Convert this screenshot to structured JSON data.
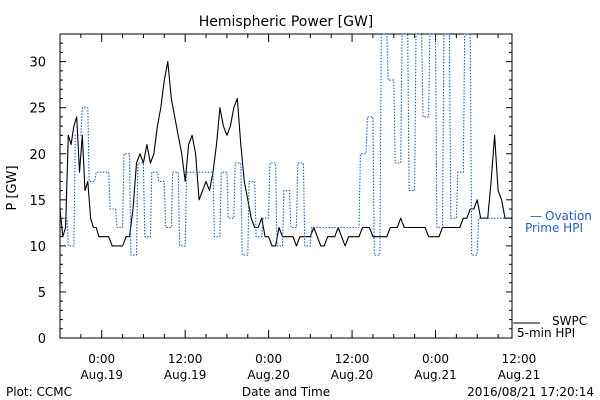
{
  "chart_data": {
    "type": "line",
    "title": "Hemispheric Power [GW]",
    "ylabel": "P [GW]",
    "xlabel": "Date and Time",
    "ylim": [
      0,
      33
    ],
    "xlim_hours": [
      -6,
      59
    ],
    "y_ticks": [
      0,
      5,
      10,
      15,
      20,
      25,
      30
    ],
    "x_ticks": [
      {
        "hour": 0,
        "time": "0:00",
        "date": "Aug.19"
      },
      {
        "hour": 12,
        "time": "12:00",
        "date": "Aug.19"
      },
      {
        "hour": 24,
        "time": "0:00",
        "date": "Aug.20"
      },
      {
        "hour": 36,
        "time": "12:00",
        "date": "Aug.20"
      },
      {
        "hour": 48,
        "time": "0:00",
        "date": "Aug.21"
      },
      {
        "hour": 60,
        "time": "12:00",
        "date": "Aug.21"
      }
    ],
    "series": [
      {
        "name": "SWPC 5-min HPI",
        "color": "#000000",
        "style": "solid",
        "x": [
          -6,
          -5.6,
          -5.2,
          -4.8,
          -4.4,
          -4,
          -3.6,
          -3.2,
          -2.8,
          -2.4,
          -2,
          -1.6,
          -1.2,
          -0.8,
          -0.4,
          0,
          0.5,
          1,
          1.5,
          2,
          2.5,
          3,
          3.5,
          4,
          4.5,
          5,
          5.5,
          6,
          6.5,
          7,
          7.5,
          8,
          8.5,
          9,
          9.5,
          10,
          10.5,
          11,
          11.5,
          12,
          12.5,
          13,
          13.5,
          14,
          14.5,
          15,
          15.5,
          16,
          16.5,
          17,
          17.5,
          18,
          18.5,
          19,
          19.5,
          20,
          20.5,
          21,
          21.5,
          22,
          22.5,
          23,
          23.5,
          24,
          24.5,
          25,
          25.5,
          26,
          26.5,
          27,
          27.5,
          28,
          28.5,
          29,
          29.5,
          30,
          30.5,
          31,
          31.5,
          32,
          32.5,
          33,
          33.5,
          34,
          34.5,
          35,
          35.5,
          36,
          36.5,
          37,
          37.5,
          38,
          38.5,
          39,
          39.5,
          40,
          40.5,
          41,
          41.5,
          42,
          42.5,
          43,
          43.5,
          44,
          44.5,
          45,
          45.5,
          46,
          46.5,
          47,
          47.5,
          48,
          48.5,
          49,
          49.5,
          50,
          50.5,
          51,
          51.5,
          52,
          52.5,
          53,
          53.5,
          54,
          54.5,
          55,
          55.5,
          56,
          56.5,
          57,
          57.5,
          58,
          58.5,
          59
        ],
        "values": [
          14,
          11,
          12,
          22,
          21,
          23,
          24,
          18,
          22,
          16,
          17,
          13,
          12,
          12,
          11,
          11,
          11,
          11,
          10,
          10,
          10,
          10,
          11,
          11,
          14,
          19,
          20,
          19,
          21,
          19,
          20,
          23,
          25,
          28,
          30,
          26,
          24,
          22,
          20,
          17,
          21,
          22,
          20,
          15,
          16,
          17,
          16,
          18,
          21,
          25,
          23,
          22,
          23,
          25,
          26,
          21,
          17,
          15,
          13,
          12,
          12,
          13,
          11,
          11,
          10,
          10,
          12,
          11,
          11,
          11,
          11,
          10,
          11,
          11,
          11,
          11,
          12,
          11,
          10,
          10,
          11,
          11,
          11,
          12,
          11,
          10,
          11,
          11,
          11,
          11,
          12,
          12,
          12,
          11,
          11,
          11,
          11,
          11,
          12,
          12,
          12,
          13,
          12,
          12,
          12,
          12,
          12,
          12,
          12,
          11,
          11,
          11,
          11,
          12,
          12,
          12,
          12,
          12,
          12,
          13,
          13,
          14,
          14,
          15,
          13,
          13,
          13,
          17,
          22,
          16,
          15,
          13,
          13,
          13
        ]
      },
      {
        "name": "Ovation Prime HPI",
        "color": "#1f5fbf",
        "style": "dotted",
        "x": [
          -6,
          -5,
          -4.8,
          -4,
          -3.8,
          -3,
          -2.8,
          -2,
          -1.8,
          -1,
          -0.8,
          0,
          0.2,
          1,
          1.2,
          2,
          2.2,
          3,
          3.2,
          4,
          4.2,
          5,
          5.2,
          6,
          6.2,
          7,
          7.2,
          8,
          8.2,
          9,
          9.2,
          10,
          10.2,
          11,
          11.2,
          12,
          12.2,
          13,
          13.2,
          14,
          14.2,
          15,
          15.2,
          16,
          16.2,
          17,
          17.2,
          18,
          18.2,
          19,
          19.2,
          20,
          20.2,
          21,
          21.2,
          22,
          22.2,
          23,
          23.2,
          24,
          24.2,
          25,
          25.2,
          26,
          26.2,
          27,
          27.2,
          28,
          28.2,
          29,
          29.2,
          30,
          30.2,
          31,
          31.2,
          32,
          32.2,
          33,
          33.2,
          34,
          34.2,
          35,
          35.2,
          36,
          36.2,
          37,
          37.2,
          38,
          38.2,
          39,
          39.2,
          40,
          40.2,
          41,
          41.2,
          42,
          42.2,
          43,
          43.2,
          44,
          44.2,
          45,
          45.2,
          46,
          46.2,
          47,
          47.2,
          48,
          48.2,
          49,
          49.2,
          50,
          50.2,
          51,
          51.2,
          52,
          52.2,
          53,
          53.2,
          54,
          54.2,
          55,
          55.2,
          56,
          56.2,
          57,
          57.2,
          58,
          58.2,
          59
        ],
        "values": [
          13,
          13,
          10,
          10,
          22,
          22,
          25,
          25,
          17,
          17,
          18,
          18,
          18,
          18,
          14,
          14,
          12,
          12,
          20,
          20,
          9,
          9,
          19,
          19,
          11,
          11,
          18,
          18,
          17,
          17,
          12,
          12,
          18,
          18,
          10,
          10,
          18,
          18,
          18,
          18,
          18,
          18,
          18,
          18,
          11,
          11,
          18,
          18,
          13,
          13,
          19,
          19,
          9,
          9,
          17,
          17,
          11,
          11,
          13,
          13,
          19,
          19,
          10,
          10,
          16,
          16,
          12,
          12,
          19,
          19,
          10,
          10,
          12,
          12,
          12,
          12,
          12,
          12,
          12,
          12,
          12,
          12,
          12,
          12,
          12,
          12,
          20,
          20,
          24,
          24,
          9,
          9,
          33,
          33,
          28,
          28,
          19,
          19,
          33,
          33,
          16,
          16,
          33,
          33,
          24,
          24,
          33,
          33,
          12,
          12,
          33,
          33,
          13,
          13,
          18,
          18,
          33,
          33,
          9,
          9,
          13,
          13,
          13,
          13,
          13,
          13,
          13,
          13,
          13,
          13
        ]
      }
    ],
    "legend": [
      {
        "line1": "Ovation",
        "line2": "Prime HPI",
        "color": "#1f5fbf",
        "position": "right-middle"
      },
      {
        "line1": "SWPC",
        "line2": "5-min HPI",
        "color": "#000000",
        "position": "right-bottom"
      }
    ]
  },
  "footer": {
    "left": "Plot: CCMC",
    "center": "Date and Time",
    "right": "2016/08/21 17:20:14"
  }
}
